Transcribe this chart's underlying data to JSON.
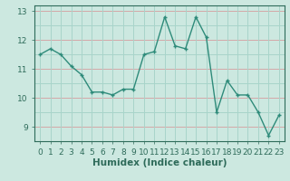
{
  "title": "",
  "xlabel": "Humidex (Indice chaleur)",
  "x": [
    0,
    1,
    2,
    3,
    4,
    5,
    6,
    7,
    8,
    9,
    10,
    11,
    12,
    13,
    14,
    15,
    16,
    17,
    18,
    19,
    20,
    21,
    22,
    23
  ],
  "y": [
    11.5,
    11.7,
    11.5,
    11.1,
    10.8,
    10.2,
    10.2,
    10.1,
    10.3,
    10.3,
    11.5,
    11.6,
    12.8,
    11.8,
    11.7,
    12.8,
    12.1,
    9.5,
    10.6,
    10.1,
    10.1,
    9.5,
    8.7,
    9.4
  ],
  "line_color": "#2e8b7a",
  "bg_color": "#cce8e0",
  "grid_color_main": "#a8d4ca",
  "grid_color_red": "#d4a8a8",
  "tick_color": "#2e6b5a",
  "ylim": [
    8.5,
    13.2
  ],
  "xlim": [
    -0.5,
    23.5
  ],
  "yticks": [
    9,
    10,
    11,
    12,
    13
  ],
  "xticks": [
    0,
    1,
    2,
    3,
    4,
    5,
    6,
    7,
    8,
    9,
    10,
    11,
    12,
    13,
    14,
    15,
    16,
    17,
    18,
    19,
    20,
    21,
    22,
    23
  ],
  "label_fontsize": 7.5,
  "tick_fontsize": 6.5
}
